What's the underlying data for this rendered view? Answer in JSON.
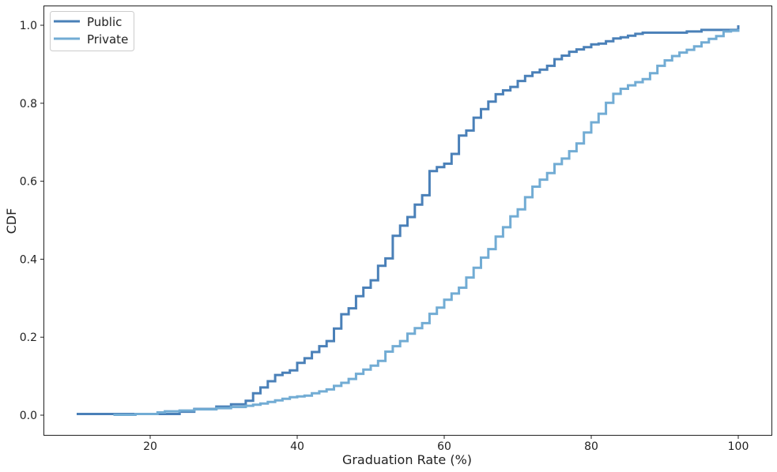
{
  "chart_data": {
    "type": "line",
    "subtype": "step-ecdf",
    "title": "",
    "xlabel": "Graduation Rate (%)",
    "ylabel": "CDF",
    "xlim": [
      5,
      105
    ],
    "ylim": [
      -0.05,
      1.05
    ],
    "xticks": [
      20,
      40,
      60,
      80,
      100
    ],
    "yticks": [
      0.0,
      0.2,
      0.4,
      0.6,
      0.8,
      1.0
    ],
    "xtick_labels": [
      "20",
      "40",
      "60",
      "80",
      "100"
    ],
    "ytick_labels": [
      "0.0",
      "0.2",
      "0.4",
      "0.6",
      "0.8",
      "1.0"
    ],
    "grid": false,
    "legend_position": "upper left",
    "series": [
      {
        "name": "Public",
        "color": "#4a80b8",
        "x": [
          10,
          24,
          26,
          29,
          31,
          33,
          34,
          35,
          36,
          37,
          38,
          39,
          40,
          41,
          42,
          43,
          44,
          45,
          46,
          47,
          48,
          49,
          50,
          51,
          52,
          53,
          54,
          55,
          56,
          57,
          58,
          59,
          60,
          61,
          62,
          63,
          64,
          65,
          66,
          67,
          68,
          69,
          70,
          71,
          72,
          73,
          74,
          75,
          76,
          77,
          78,
          79,
          80,
          81,
          82,
          83,
          84,
          85,
          86,
          87,
          93,
          95,
          100
        ],
        "y": [
          0.003,
          0.009,
          0.016,
          0.022,
          0.028,
          0.037,
          0.056,
          0.071,
          0.087,
          0.103,
          0.109,
          0.115,
          0.134,
          0.146,
          0.162,
          0.177,
          0.19,
          0.222,
          0.259,
          0.274,
          0.305,
          0.327,
          0.346,
          0.383,
          0.402,
          0.46,
          0.486,
          0.508,
          0.54,
          0.564,
          0.626,
          0.636,
          0.645,
          0.67,
          0.717,
          0.73,
          0.763,
          0.785,
          0.804,
          0.823,
          0.833,
          0.842,
          0.857,
          0.87,
          0.879,
          0.886,
          0.896,
          0.913,
          0.922,
          0.932,
          0.938,
          0.944,
          0.951,
          0.953,
          0.959,
          0.966,
          0.969,
          0.973,
          0.978,
          0.981,
          0.984,
          0.988,
          1.0
        ]
      },
      {
        "name": "Private",
        "color": "#72acd4",
        "x": [
          15,
          18,
          21,
          22,
          24,
          26,
          29,
          31,
          33,
          34,
          35,
          36,
          37,
          38,
          39,
          40,
          41,
          42,
          43,
          44,
          45,
          46,
          47,
          48,
          49,
          50,
          51,
          52,
          53,
          54,
          55,
          56,
          57,
          58,
          59,
          60,
          61,
          62,
          63,
          64,
          65,
          66,
          67,
          68,
          69,
          70,
          71,
          72,
          73,
          74,
          75,
          76,
          77,
          78,
          79,
          80,
          81,
          82,
          83,
          84,
          85,
          86,
          87,
          88,
          89,
          90,
          91,
          92,
          93,
          94,
          95,
          96,
          97,
          98,
          99,
          100
        ],
        "y": [
          0.001,
          0.003,
          0.007,
          0.01,
          0.012,
          0.015,
          0.018,
          0.021,
          0.024,
          0.027,
          0.03,
          0.034,
          0.038,
          0.042,
          0.046,
          0.048,
          0.05,
          0.056,
          0.061,
          0.066,
          0.075,
          0.083,
          0.093,
          0.106,
          0.117,
          0.127,
          0.139,
          0.163,
          0.177,
          0.19,
          0.209,
          0.223,
          0.236,
          0.26,
          0.276,
          0.296,
          0.312,
          0.327,
          0.353,
          0.378,
          0.404,
          0.426,
          0.458,
          0.482,
          0.51,
          0.528,
          0.559,
          0.586,
          0.604,
          0.621,
          0.644,
          0.658,
          0.677,
          0.697,
          0.725,
          0.751,
          0.773,
          0.801,
          0.824,
          0.837,
          0.846,
          0.854,
          0.862,
          0.877,
          0.896,
          0.91,
          0.921,
          0.93,
          0.937,
          0.946,
          0.956,
          0.965,
          0.972,
          0.984,
          0.986,
          0.99
        ]
      }
    ]
  },
  "legend": {
    "items": [
      {
        "label": "Public",
        "color": "#4a80b8"
      },
      {
        "label": "Private",
        "color": "#72acd4"
      }
    ]
  }
}
